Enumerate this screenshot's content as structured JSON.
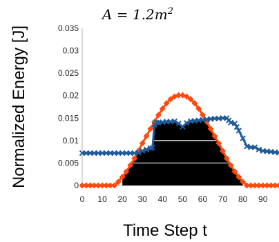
{
  "chart_data": {
    "type": "line",
    "title": "",
    "annotation": {
      "base": "A = 1.2m",
      "superscript": "2"
    },
    "xlabel": "Time Step t",
    "ylabel": "Normalized Energy [J]",
    "xlim": [
      0,
      98
    ],
    "ylim": [
      0,
      0.035
    ],
    "x_ticks": [
      "0",
      "10",
      "20",
      "30",
      "40",
      "50",
      "60",
      "70",
      "80",
      "90"
    ],
    "x_tick_values": [
      0,
      10,
      20,
      30,
      40,
      50,
      60,
      70,
      80,
      90
    ],
    "y_ticks": [
      "0",
      "0.005",
      "0.01",
      "0.015",
      "0.02",
      "0.025",
      "0.03",
      "0.035"
    ],
    "y_tick_values": [
      0,
      0.005,
      0.01,
      0.015,
      0.02,
      0.025,
      0.03,
      0.035
    ],
    "grid": false,
    "series": [
      {
        "color": "#ff4a0f",
        "marker": "diamond",
        "x": [
          0,
          2,
          4,
          6,
          8,
          10,
          12,
          14,
          16,
          18,
          20,
          22,
          24,
          26,
          28,
          30,
          32,
          34,
          36,
          38,
          40,
          42,
          44,
          46,
          48,
          50,
          52,
          54,
          56,
          58,
          60,
          62,
          64,
          66,
          68,
          70,
          72,
          74,
          76,
          78,
          80,
          82,
          84,
          86,
          88,
          90,
          92,
          94,
          96,
          98
        ],
        "y": [
          0,
          0,
          0,
          0,
          0,
          0,
          0,
          0,
          0,
          0.0008,
          0.0019,
          0.0031,
          0.0045,
          0.006,
          0.0077,
          0.0094,
          0.011,
          0.0126,
          0.0142,
          0.0157,
          0.0171,
          0.0183,
          0.0192,
          0.0198,
          0.0201,
          0.0201,
          0.0198,
          0.0192,
          0.0183,
          0.0171,
          0.0157,
          0.0142,
          0.0126,
          0.011,
          0.0094,
          0.0077,
          0.006,
          0.0045,
          0.0031,
          0.0019,
          0.0008,
          0,
          0,
          0,
          0,
          0,
          0,
          0,
          0,
          0
        ]
      },
      {
        "color": "#1f5a9a",
        "marker": "x",
        "x": [
          0,
          2,
          4,
          6,
          8,
          10,
          12,
          14,
          16,
          18,
          20,
          22,
          24,
          26,
          28,
          30,
          32,
          34,
          35,
          36,
          37,
          38,
          40,
          42,
          44,
          46,
          48,
          50,
          52,
          54,
          56,
          58,
          60,
          62,
          64,
          66,
          68,
          70,
          72,
          73,
          74,
          76,
          77,
          78,
          80,
          82,
          84,
          86,
          88,
          90,
          92,
          94,
          96,
          98
        ],
        "y": [
          0.0072,
          0.0072,
          0.0072,
          0.0072,
          0.0072,
          0.0072,
          0.0072,
          0.0072,
          0.0072,
          0.0072,
          0.0072,
          0.0072,
          0.0072,
          0.0072,
          0.0073,
          0.0077,
          0.008,
          0.0083,
          0.0084,
          0.0135,
          0.014,
          0.014,
          0.0141,
          0.0142,
          0.0142,
          0.0143,
          0.0138,
          0.0131,
          0.0139,
          0.0143,
          0.0144,
          0.0145,
          0.0146,
          0.0147,
          0.0148,
          0.0149,
          0.0149,
          0.015,
          0.015,
          0.0145,
          0.014,
          0.0138,
          0.013,
          0.0122,
          0.0105,
          0.0087,
          0.0085,
          0.0085,
          0.008,
          0.0077,
          0.0076,
          0.0075,
          0.0074,
          0.0073
        ]
      }
    ],
    "shaded_region": {
      "color": "#000000",
      "x": [
        20,
        22,
        24,
        26,
        28,
        30,
        32,
        34,
        35,
        36,
        37,
        38,
        40,
        42,
        44,
        46,
        48,
        50,
        52,
        54,
        56,
        58,
        60,
        62,
        64,
        66,
        68,
        70,
        72,
        74,
        76,
        78,
        80
      ],
      "y": [
        0.0019,
        0.0031,
        0.0045,
        0.006,
        0.0073,
        0.0077,
        0.008,
        0.0083,
        0.0084,
        0.0135,
        0.014,
        0.014,
        0.0141,
        0.0142,
        0.0142,
        0.0143,
        0.0138,
        0.0131,
        0.0139,
        0.0143,
        0.0144,
        0.0145,
        0.0146,
        0.0142,
        0.0126,
        0.011,
        0.0094,
        0.0077,
        0.006,
        0.0045,
        0.0031,
        0.0019,
        0.0008
      ]
    }
  }
}
